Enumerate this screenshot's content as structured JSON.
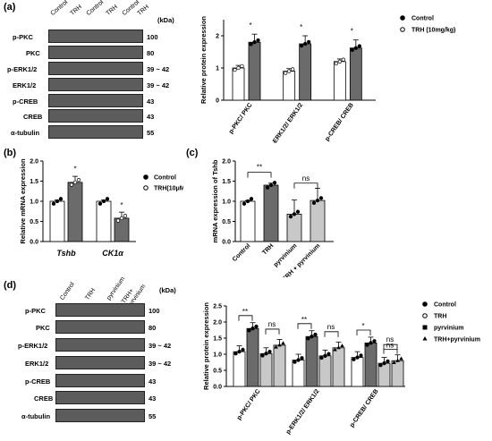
{
  "panel_labels": {
    "a": "(a)",
    "b": "(b)",
    "c": "(c)",
    "d": "(d)"
  },
  "panel_a": {
    "lane_labels": [
      "Control",
      "TRH",
      "Control",
      "TRH",
      "Control",
      "TRH"
    ],
    "kda_header": "(kDa)",
    "rows": [
      {
        "name": "p-PKC",
        "kda": "100"
      },
      {
        "name": "PKC",
        "kda": "80"
      },
      {
        "name": "p-ERK1/2",
        "kda": "39 ~ 42"
      },
      {
        "name": "ERK1/2",
        "kda": "39 ~ 42"
      },
      {
        "name": "p-CREB",
        "kda": "43"
      },
      {
        "name": "CREB",
        "kda": "43"
      },
      {
        "name": "α-tubulin",
        "kda": "55"
      }
    ]
  },
  "panel_d": {
    "lane_labels": [
      "Control",
      "TRH",
      "pyrvinium",
      "TRH+ pyrvinium"
    ],
    "kda_header": "(kDa)",
    "rows": [
      {
        "name": "p-PKC",
        "kda": "100"
      },
      {
        "name": "PKC",
        "kda": "80"
      },
      {
        "name": "p-ERK1/2",
        "kda": "39 ~ 42"
      },
      {
        "name": "ERK1/2",
        "kda": "39 ~ 42"
      },
      {
        "name": "p-CREB",
        "kda": "43"
      },
      {
        "name": "CREB",
        "kda": "43"
      },
      {
        "name": "α-tubulin",
        "kda": "55"
      }
    ]
  },
  "chart_data": [
    {
      "panel": "a",
      "type": "bar",
      "ylabel": "Relative protein expression",
      "ylim": [
        0,
        2.5
      ],
      "yticks": [
        "0",
        "1",
        "2"
      ],
      "categories": [
        "p-PKC/ PKC",
        "p-ERK1/2/ ERK1/2",
        "p-CREB/ CREB"
      ],
      "series": [
        {
          "name": "Control",
          "values": [
            1.0,
            0.9,
            1.2
          ]
        },
        {
          "name": "TRH (10mg/kg)",
          "values": [
            1.8,
            1.75,
            1.62
          ]
        }
      ],
      "annotations": [
        "*",
        "*",
        "*"
      ]
    },
    {
      "panel": "b",
      "type": "bar",
      "ylabel": "Relative mRNA expression",
      "ylim": [
        0,
        2.0
      ],
      "yticks": [
        "0.0",
        "0.5",
        "1.0",
        "1.5",
        "2.0"
      ],
      "categories": [
        "Tshb",
        "CK1α"
      ],
      "series": [
        {
          "name": "Control",
          "values": [
            1.0,
            1.0
          ]
        },
        {
          "name": "TRH(10μM)",
          "values": [
            1.47,
            0.58
          ]
        }
      ],
      "annotations": [
        "*",
        "*"
      ]
    },
    {
      "panel": "c",
      "type": "bar",
      "ylabel": "mRNA expression of Tshb",
      "ylim": [
        0,
        2.0
      ],
      "yticks": [
        "0.0",
        "0.5",
        "1.0",
        "1.5",
        "2.0"
      ],
      "categories": [
        "Control",
        "TRH",
        "pyrvinium",
        "TRH + pyrvinium"
      ],
      "values": [
        1.0,
        1.4,
        0.68,
        1.02
      ],
      "annotations": [
        "**",
        "ns"
      ]
    },
    {
      "panel": "d",
      "type": "bar",
      "ylabel": "Relative protein expression",
      "ylim": [
        0,
        2.5
      ],
      "yticks": [
        "0.0",
        "0.5",
        "1.0",
        "1.5",
        "2.0",
        "2.5"
      ],
      "categories": [
        "p-PKC/ PKC",
        "p-ERK1/2/ ERK1/2",
        "p-CREB/ CREB"
      ],
      "series": [
        {
          "name": "Control",
          "values": [
            1.08,
            0.82,
            0.9
          ]
        },
        {
          "name": "TRH",
          "values": [
            1.8,
            1.55,
            1.35
          ]
        },
        {
          "name": "pyrvinium",
          "values": [
            1.02,
            0.95,
            0.72
          ]
        },
        {
          "name": "TRH+pyrvinium",
          "values": [
            1.28,
            1.2,
            0.8
          ]
        }
      ],
      "annotations": [
        "**",
        "ns",
        "**",
        "ns",
        "*",
        "ns",
        "ns"
      ]
    }
  ],
  "colors": {
    "control": "#ffffff",
    "trh": "#6b6b6b",
    "pyrvinium": "#c8c8c8",
    "blot": "#5c5c5c"
  }
}
